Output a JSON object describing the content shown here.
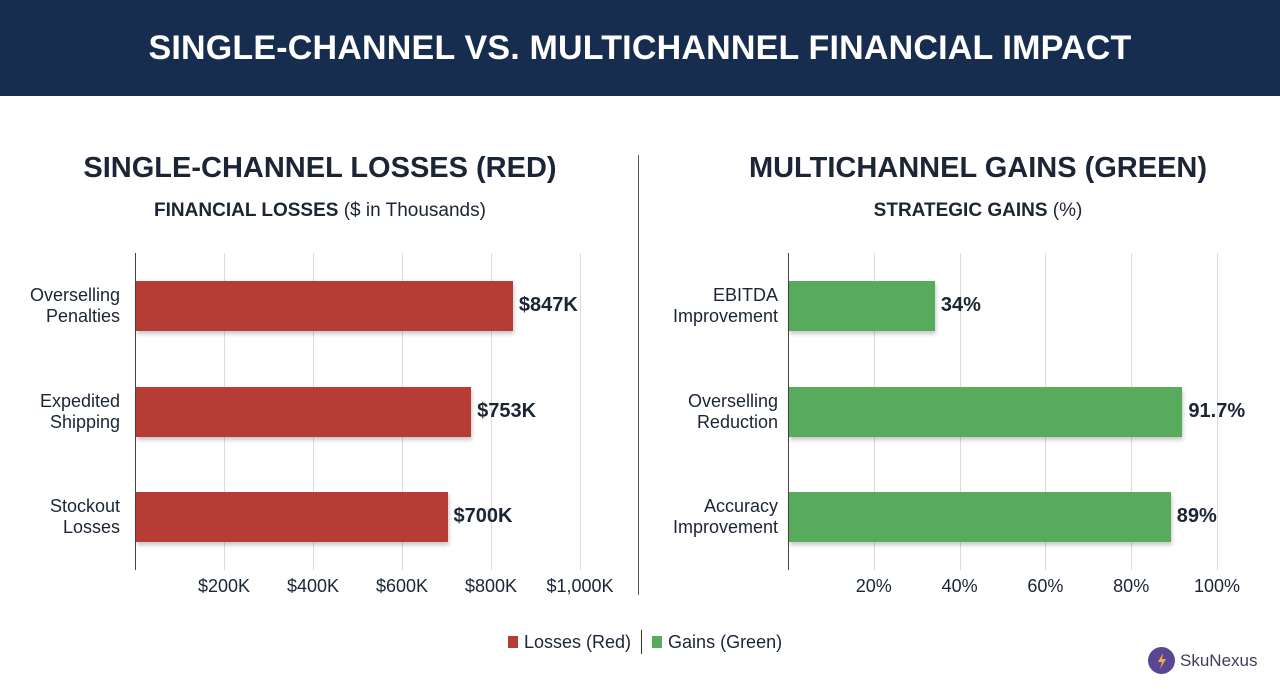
{
  "header": {
    "title": "SINGLE-CHANNEL VS. MULTICHANNEL FINANCIAL IMPACT"
  },
  "left_panel": {
    "title": "SINGLE-CHANNEL LOSSES (RED)",
    "subtitle_bold": "FINANCIAL LOSSES",
    "subtitle_rest": " ($ in Thousands)"
  },
  "right_panel": {
    "title": "MULTICHANNEL GAINS (GREEN)",
    "subtitle_bold": "STRATEGIC GAINS",
    "subtitle_rest": " (%)"
  },
  "legend": {
    "items": [
      {
        "label": "Losses (Red)",
        "color": "#b83c36"
      },
      {
        "label": "Gains (Green)",
        "color": "#58aa5c"
      }
    ]
  },
  "brand": {
    "name": "SkuNexus",
    "icon": "lightning-bolt-icon",
    "color": "#5b4696"
  },
  "colors": {
    "header_bg": "#172d4f",
    "loss": "#b83c36",
    "gain": "#58aa5c"
  },
  "chart_data": [
    {
      "type": "bar",
      "orientation": "horizontal",
      "title": "SINGLE-CHANNEL LOSSES (RED)",
      "subtitle": "FINANCIAL LOSSES ($ in Thousands)",
      "categories": [
        "Overselling Penalties",
        "Expedited Shipping",
        "Stockout Losses"
      ],
      "category_lines": [
        [
          "Overselling",
          "Penalties"
        ],
        [
          "Expedited",
          "Shipping"
        ],
        [
          "Stockout",
          "Losses"
        ]
      ],
      "values": [
        847,
        753,
        700
      ],
      "value_labels": [
        "$847K",
        "$753K",
        "$700K"
      ],
      "xlabel": "",
      "ylabel": "",
      "xlim": [
        0,
        1000
      ],
      "ticks": [
        200,
        400,
        600,
        800,
        1000
      ],
      "tick_labels": [
        "$200K",
        "$400K",
        "$600K",
        "$800K",
        "$1,000K"
      ],
      "grid": true,
      "color": "#b83c36",
      "legend_position": "bottom"
    },
    {
      "type": "bar",
      "orientation": "horizontal",
      "title": "MULTICHANNEL GAINS (GREEN)",
      "subtitle": "STRATEGIC GAINS (%)",
      "categories": [
        "EBITDA Improvement",
        "Overselling Reduction",
        "Accuracy Improvement"
      ],
      "category_lines": [
        [
          "EBITDA",
          "Improvement"
        ],
        [
          "Overselling",
          "Reduction"
        ],
        [
          "Accuracy",
          "Improvement"
        ]
      ],
      "values": [
        34,
        91.7,
        89
      ],
      "value_labels": [
        "34%",
        "91.7%",
        "89%"
      ],
      "xlabel": "",
      "ylabel": "",
      "xlim": [
        0,
        100
      ],
      "ticks": [
        20,
        40,
        60,
        80,
        100
      ],
      "tick_labels": [
        "20%",
        "40%",
        "60%",
        "80%",
        "100%"
      ],
      "grid": true,
      "color": "#58aa5c",
      "legend_position": "bottom"
    }
  ]
}
